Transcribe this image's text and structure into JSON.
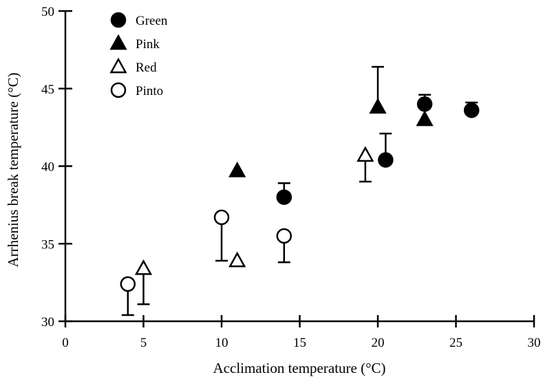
{
  "chart_data": {
    "type": "scatter",
    "xlabel": "Acclimation temperature (°C)",
    "ylabel": "Arrhenius break temperature (°C)",
    "xlim": [
      0,
      30
    ],
    "ylim": [
      30,
      50
    ],
    "x_ticks": [
      0,
      5,
      10,
      15,
      20,
      25,
      30
    ],
    "y_ticks": [
      30,
      35,
      40,
      45,
      50
    ],
    "x_tick_labels": [
      "0",
      "5",
      "10",
      "15",
      "20",
      "25",
      "30"
    ],
    "y_tick_labels": [
      "30",
      "35",
      "40",
      "45",
      "50"
    ],
    "legend_position": "top-left",
    "grid": false,
    "series": [
      {
        "name": "Green",
        "marker": "circle-filled",
        "points": [
          {
            "x": 14,
            "y": 38.0,
            "err_hi": 38.9
          },
          {
            "x": 20.5,
            "y": 40.4,
            "err_hi": 42.1
          },
          {
            "x": 23,
            "y": 44.0,
            "err_hi": 44.6
          },
          {
            "x": 26,
            "y": 43.6,
            "err_hi": 44.1
          }
        ]
      },
      {
        "name": "Pink",
        "marker": "triangle-filled",
        "points": [
          {
            "x": 11,
            "y": 39.7
          },
          {
            "x": 20,
            "y": 43.8,
            "err_hi": 46.4
          },
          {
            "x": 23,
            "y": 43.0
          }
        ]
      },
      {
        "name": "Red",
        "marker": "triangle-open",
        "points": [
          {
            "x": 5,
            "y": 33.4,
            "err_lo": 31.1
          },
          {
            "x": 11,
            "y": 33.9
          },
          {
            "x": 19.2,
            "y": 40.7,
            "err_lo": 39.0
          }
        ]
      },
      {
        "name": "Pinto",
        "marker": "circle-open",
        "points": [
          {
            "x": 4,
            "y": 32.4,
            "err_lo": 30.4
          },
          {
            "x": 10,
            "y": 36.7,
            "err_lo": 33.9
          },
          {
            "x": 14,
            "y": 35.5,
            "err_lo": 33.8
          }
        ]
      }
    ]
  }
}
